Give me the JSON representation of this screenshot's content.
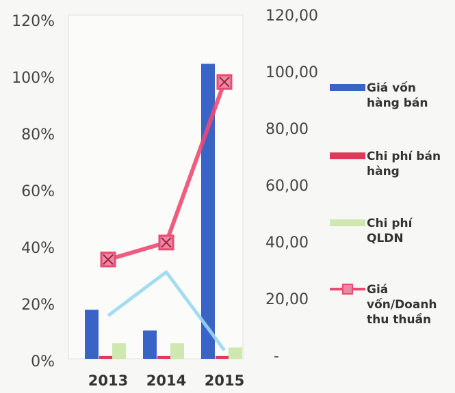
{
  "chart_data": {
    "type": "bar",
    "categories": [
      "2013",
      "2014",
      "2015"
    ],
    "ylim": [
      0,
      120
    ],
    "yticks": [
      {
        "value": 0,
        "label": "0%"
      },
      {
        "value": 20,
        "label": "20%"
      },
      {
        "value": 40,
        "label": "40%"
      },
      {
        "value": 60,
        "label": "60%"
      },
      {
        "value": 80,
        "label": "80%"
      },
      {
        "value": 100,
        "label": "100%"
      },
      {
        "value": 120,
        "label": "120%"
      }
    ],
    "y2lim": [
      0,
      120
    ],
    "y2ticks": [
      {
        "value": 0,
        "label": "-"
      },
      {
        "value": 20,
        "label": "20,00"
      },
      {
        "value": 40,
        "label": "40,00"
      },
      {
        "value": 60,
        "label": "60,00"
      },
      {
        "value": 80,
        "label": "80,00"
      },
      {
        "value": 100,
        "label": "100,00"
      },
      {
        "value": 120,
        "label": "120,00"
      }
    ],
    "series": [
      {
        "name": "Giá vốn hàng bán",
        "color": "#3a63c8",
        "axis": "y2",
        "values": [
          17.3,
          10,
          104
        ]
      },
      {
        "name": "Chi phí bán hàng",
        "color": "#e0385a",
        "axis": "y2",
        "values": [
          1,
          1,
          1
        ]
      },
      {
        "name": "Chi phí QLDN",
        "color": "#cfe8b0",
        "axis": "y2",
        "values": [
          5.5,
          5.5,
          4
        ]
      },
      {
        "name": "Giá vốn/Doanh thu thuần",
        "color": "#ec4a72",
        "type": "line",
        "values": [
          35,
          41,
          97.6
        ]
      },
      {
        "color": "#9ad8ef",
        "type": "line",
        "values": [
          15.2,
          30.6,
          3
        ]
      }
    ]
  }
}
